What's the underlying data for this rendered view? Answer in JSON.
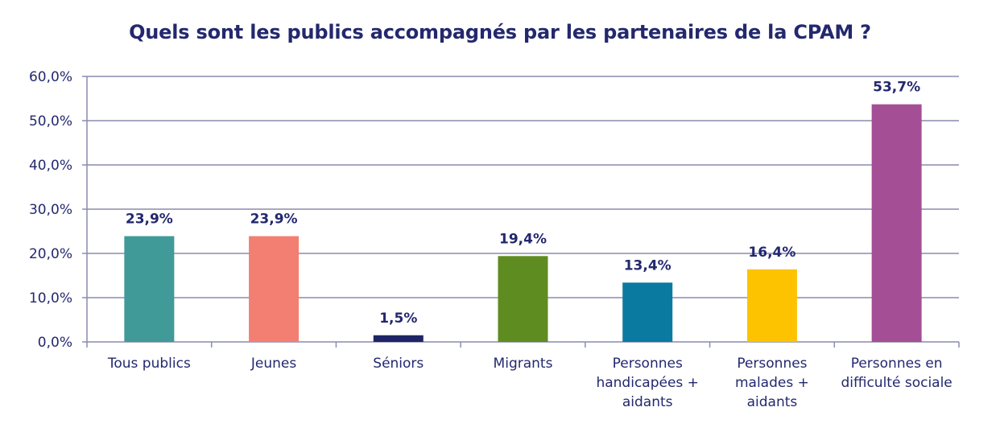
{
  "chart_data": {
    "type": "bar",
    "title": "Quels sont les publics accompagnés par les partenaires de la CPAM ?",
    "xlabel": "",
    "ylabel": "",
    "ylim": [
      0,
      60
    ],
    "y_ticks": [
      "0,0%",
      "10,0%",
      "20,0%",
      "30,0%",
      "40,0%",
      "50,0%",
      "60,0%"
    ],
    "y_tick_values": [
      0,
      10,
      20,
      30,
      40,
      50,
      60
    ],
    "grid": true,
    "categories": [
      [
        "Tous publics"
      ],
      [
        "Jeunes"
      ],
      [
        "Séniors"
      ],
      [
        "Migrants"
      ],
      [
        "Personnes",
        "handicapées +",
        "aidants"
      ],
      [
        "Personnes",
        "malades +",
        "aidants"
      ],
      [
        "Personnes en",
        "difficulté sociale"
      ]
    ],
    "values": [
      23.9,
      23.9,
      1.5,
      19.4,
      13.4,
      16.4,
      53.7
    ],
    "value_labels": [
      "23,9%",
      "23,9%",
      "1,5%",
      "19,4%",
      "13,4%",
      "16,4%",
      "53,7%"
    ],
    "colors": [
      "#3f9a98",
      "#f27f72",
      "#1f2466",
      "#5f8c20",
      "#0b7aa0",
      "#fdc300",
      "#a44e96"
    ],
    "text_color": "#23286e",
    "grid_color": "#8a8cae"
  }
}
